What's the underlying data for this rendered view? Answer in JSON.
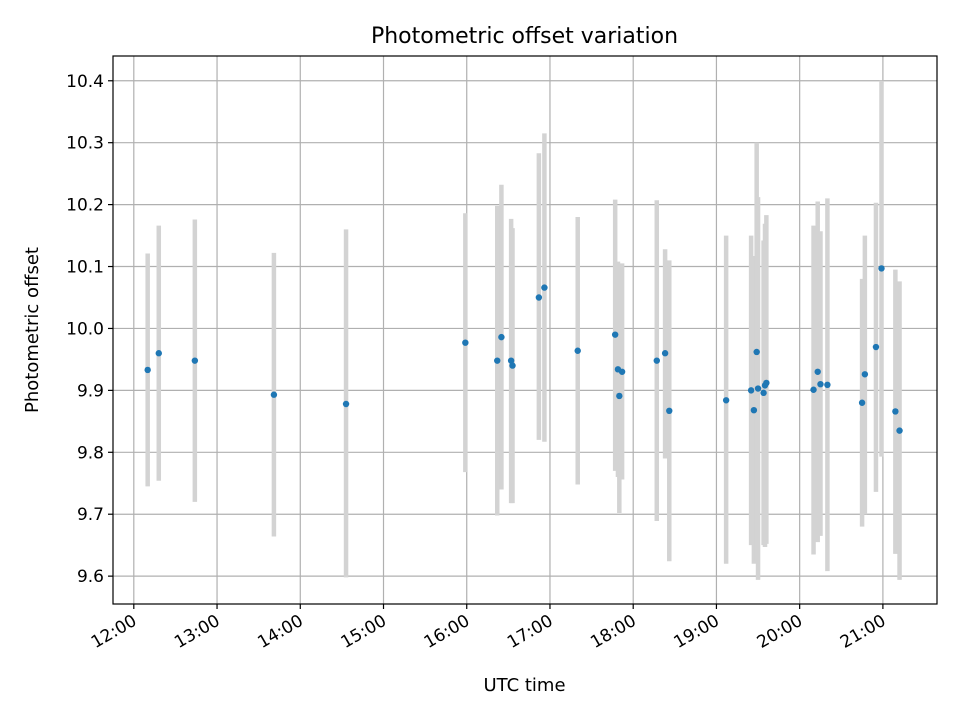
{
  "chart_data": {
    "type": "scatter",
    "title": "Photometric offset variation",
    "xlabel": "UTC time",
    "ylabel": "Photometric offset",
    "xlim": [
      "11:45",
      "21:39"
    ],
    "ylim": [
      9.555,
      10.44
    ],
    "x_ticks": [
      "12:00",
      "13:00",
      "14:00",
      "15:00",
      "16:00",
      "17:00",
      "18:00",
      "19:00",
      "20:00",
      "21:00"
    ],
    "y_ticks": [
      "9.6",
      "9.7",
      "9.8",
      "9.9",
      "10.0",
      "10.1",
      "10.2",
      "10.3",
      "10.4"
    ],
    "grid": true,
    "point_color": "#1f77b4",
    "errorbar_color": "#d3d3d3",
    "series": [
      {
        "points": [
          {
            "time": "12:10",
            "y": 9.933,
            "ylow": 9.745,
            "yhigh": 10.121
          },
          {
            "time": "12:18",
            "y": 9.96,
            "ylow": 9.754,
            "yhigh": 10.166
          },
          {
            "time": "12:44",
            "y": 9.948,
            "ylow": 9.72,
            "yhigh": 10.176
          },
          {
            "time": "13:41",
            "y": 9.893,
            "ylow": 9.664,
            "yhigh": 10.122
          },
          {
            "time": "14:33",
            "y": 9.878,
            "ylow": 9.598,
            "yhigh": 10.16
          },
          {
            "time": "15:59",
            "y": 9.977,
            "ylow": 9.768,
            "yhigh": 10.186
          },
          {
            "time": "16:22",
            "y": 9.948,
            "ylow": 9.698,
            "yhigh": 10.198
          },
          {
            "time": "16:25",
            "y": 9.986,
            "ylow": 9.74,
            "yhigh": 10.232
          },
          {
            "time": "16:32",
            "y": 9.948,
            "ylow": 9.718,
            "yhigh": 10.177
          },
          {
            "time": "16:33",
            "y": 9.94,
            "ylow": 9.718,
            "yhigh": 10.162
          },
          {
            "time": "16:52",
            "y": 10.05,
            "ylow": 9.82,
            "yhigh": 10.283
          },
          {
            "time": "16:56",
            "y": 10.066,
            "ylow": 9.817,
            "yhigh": 10.315
          },
          {
            "time": "17:20",
            "y": 9.964,
            "ylow": 9.748,
            "yhigh": 10.18
          },
          {
            "time": "17:47",
            "y": 9.99,
            "ylow": 9.77,
            "yhigh": 10.208
          },
          {
            "time": "17:49",
            "y": 9.934,
            "ylow": 9.76,
            "yhigh": 10.108
          },
          {
            "time": "17:50",
            "y": 9.891,
            "ylow": 9.702,
            "yhigh": 10.08
          },
          {
            "time": "17:52",
            "y": 9.93,
            "ylow": 9.756,
            "yhigh": 10.105
          },
          {
            "time": "18:17",
            "y": 9.948,
            "ylow": 9.689,
            "yhigh": 10.207
          },
          {
            "time": "18:23",
            "y": 9.96,
            "ylow": 9.79,
            "yhigh": 10.128
          },
          {
            "time": "18:26",
            "y": 9.867,
            "ylow": 9.624,
            "yhigh": 10.11
          },
          {
            "time": "19:07",
            "y": 9.884,
            "ylow": 9.62,
            "yhigh": 10.15
          },
          {
            "time": "19:25",
            "y": 9.9,
            "ylow": 9.65,
            "yhigh": 10.15
          },
          {
            "time": "19:27",
            "y": 9.868,
            "ylow": 9.62,
            "yhigh": 10.117
          },
          {
            "time": "19:29",
            "y": 9.962,
            "ylow": 9.624,
            "yhigh": 10.3
          },
          {
            "time": "19:30",
            "y": 9.903,
            "ylow": 9.594,
            "yhigh": 10.212
          },
          {
            "time": "19:34",
            "y": 9.896,
            "ylow": 9.65,
            "yhigh": 10.142
          },
          {
            "time": "19:35",
            "y": 9.908,
            "ylow": 9.647,
            "yhigh": 10.169
          },
          {
            "time": "19:36",
            "y": 9.912,
            "ylow": 9.652,
            "yhigh": 10.183
          },
          {
            "time": "20:10",
            "y": 9.901,
            "ylow": 9.635,
            "yhigh": 10.166
          },
          {
            "time": "20:13",
            "y": 9.93,
            "ylow": 9.655,
            "yhigh": 10.205
          },
          {
            "time": "20:15",
            "y": 9.91,
            "ylow": 9.665,
            "yhigh": 10.157
          },
          {
            "time": "20:20",
            "y": 9.909,
            "ylow": 9.608,
            "yhigh": 10.21
          },
          {
            "time": "20:45",
            "y": 9.88,
            "ylow": 9.68,
            "yhigh": 10.08
          },
          {
            "time": "20:47",
            "y": 9.926,
            "ylow": 9.7,
            "yhigh": 10.15
          },
          {
            "time": "20:55",
            "y": 9.97,
            "ylow": 9.736,
            "yhigh": 10.203
          },
          {
            "time": "20:59",
            "y": 10.097,
            "ylow": 9.793,
            "yhigh": 10.4
          },
          {
            "time": "21:09",
            "y": 9.866,
            "ylow": 9.636,
            "yhigh": 10.095
          },
          {
            "time": "21:12",
            "y": 9.835,
            "ylow": 9.594,
            "yhigh": 10.076
          }
        ]
      }
    ]
  }
}
